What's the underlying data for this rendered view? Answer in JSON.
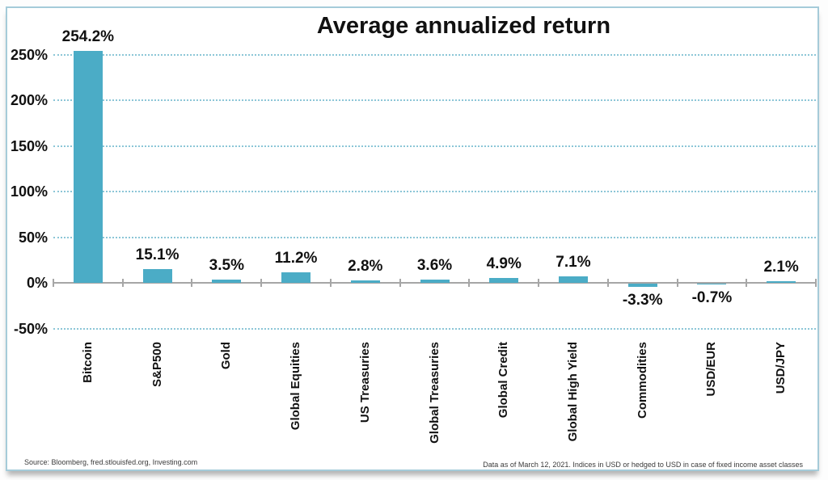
{
  "chart_data": {
    "type": "bar",
    "title": "Average annualized return",
    "categories": [
      "Bitcoin",
      "S&P500",
      "Gold",
      "Global Equities",
      "US Treasuries",
      "Global Treasuries",
      "Global Credit",
      "Global High Yield",
      "Commodities",
      "USD/EUR",
      "USD/JPY"
    ],
    "values": [
      254.2,
      15.1,
      3.5,
      11.2,
      2.8,
      3.6,
      4.9,
      7.1,
      -3.3,
      -0.7,
      2.1
    ],
    "value_labels": [
      "254.2%",
      "15.1%",
      "3.5%",
      "11.2%",
      "2.8%",
      "3.6%",
      "4.9%",
      "7.1%",
      "-3.3%",
      "-0.7%",
      "2.1%"
    ],
    "y_axis": {
      "ticks": [
        {
          "label": "250%",
          "value": 250
        },
        {
          "label": "200%",
          "value": 200
        },
        {
          "label": "150%",
          "value": 150
        },
        {
          "label": "100%",
          "value": 100
        },
        {
          "label": "50%",
          "value": 50
        },
        {
          "label": "0%",
          "value": 0
        },
        {
          "label": "-50%",
          "value": -50
        }
      ],
      "range": [
        -65,
        262
      ]
    },
    "gridline_values": [
      250,
      200,
      150,
      100,
      50,
      -50
    ],
    "grid_style": "dotted",
    "legend_visible": false,
    "colors": {
      "bar": "#4bacc6",
      "gridline": "#8cc6d7",
      "axis": "#a6a6a6",
      "frame_border": "#a5cbd9",
      "label_text": "#111111"
    }
  },
  "footer": {
    "source": "Source: Bloomberg, fred.stlouisfed.org, Investing.com",
    "note": "Data as of March 12, 2021. Indices in USD or hedged to USD in case of fixed income asset classes"
  }
}
